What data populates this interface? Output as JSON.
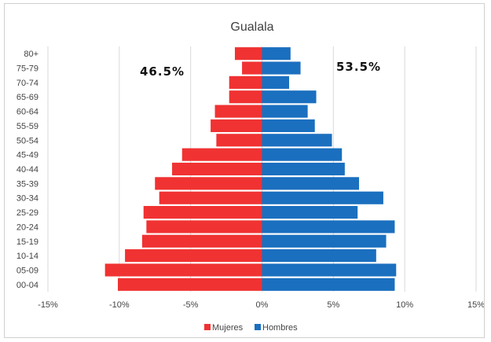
{
  "chart_data": {
    "type": "bar",
    "orientation": "horizontal",
    "title": "Gualala",
    "categories": [
      "00-04",
      "05-09",
      "10-14",
      "15-19",
      "20-24",
      "25-29",
      "30-34",
      "35-39",
      "40-44",
      "45-49",
      "50-54",
      "55-59",
      "60-64",
      "65-69",
      "70-74",
      "75-79",
      "80+"
    ],
    "series": [
      {
        "name": "Mujeres",
        "color": "#f03232",
        "values": [
          -10.1,
          -11.0,
          -9.6,
          -8.4,
          -8.1,
          -8.3,
          -7.2,
          -7.5,
          -6.3,
          -5.6,
          -3.2,
          -3.6,
          -3.3,
          -2.3,
          -2.3,
          -1.4,
          -1.9
        ]
      },
      {
        "name": "Hombres",
        "color": "#1a6fbf",
        "values": [
          9.3,
          9.4,
          8.0,
          8.7,
          9.3,
          6.7,
          8.5,
          6.8,
          5.8,
          5.6,
          4.9,
          3.7,
          3.2,
          3.8,
          1.9,
          2.7,
          2.0
        ]
      }
    ],
    "xlim": [
      -15,
      15
    ],
    "x_ticks": [
      "-15%",
      "-10%",
      "-5%",
      "0%",
      "5%",
      "10%",
      "15%"
    ],
    "grid": true,
    "legend_position": "bottom",
    "annotations": {
      "left": "46.5%",
      "right": "53.5%"
    }
  }
}
